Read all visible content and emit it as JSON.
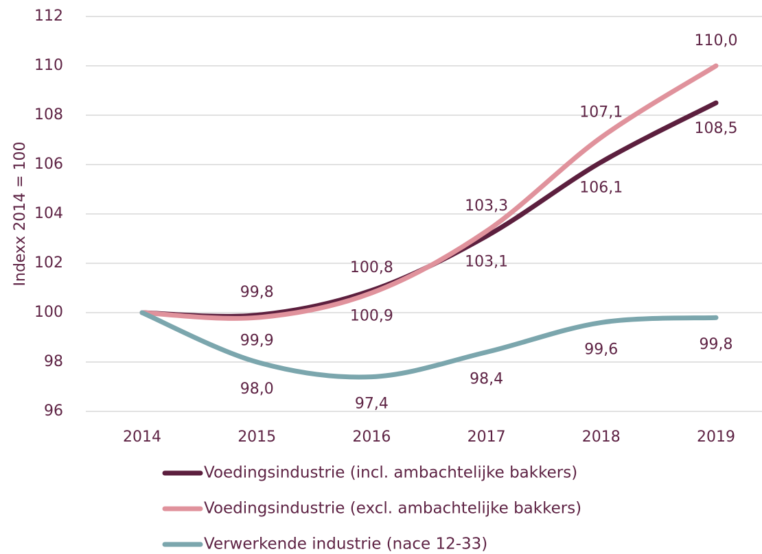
{
  "chart_data": {
    "type": "line",
    "y_label": "Indexx 2014 = 100",
    "categories": [
      "2014",
      "2015",
      "2016",
      "2017",
      "2018",
      "2019"
    ],
    "series": [
      {
        "name": "Voedingsindustrie (incl. ambachtelijke bakkers)",
        "color": "#5c1f3e",
        "values": [
          100,
          99.9,
          100.9,
          103.1,
          106.1,
          108.5
        ],
        "value_labels": [
          null,
          "99,9",
          "100,9",
          "103,1",
          "106,1",
          "108,5"
        ]
      },
      {
        "name": "Voedingsindustrie (excl. ambachtelijke bakkers)",
        "color": "#e0929c",
        "values": [
          100,
          99.8,
          100.8,
          103.3,
          107.1,
          110.0
        ],
        "value_labels": [
          null,
          "99,8",
          "100,8",
          "103,3",
          "107,1",
          "110,0"
        ]
      },
      {
        "name": "Verwerkende industrie (nace 12-33)",
        "color": "#7ba6ad",
        "values": [
          100,
          98.0,
          97.4,
          98.4,
          99.6,
          99.8
        ],
        "value_labels": [
          null,
          "98,0",
          "97,4",
          "98,4",
          "99,6",
          "99,8"
        ]
      }
    ],
    "ylim": [
      96,
      112
    ],
    "yticks": [
      96,
      98,
      100,
      102,
      104,
      106,
      108,
      110,
      112
    ],
    "grid": true
  }
}
